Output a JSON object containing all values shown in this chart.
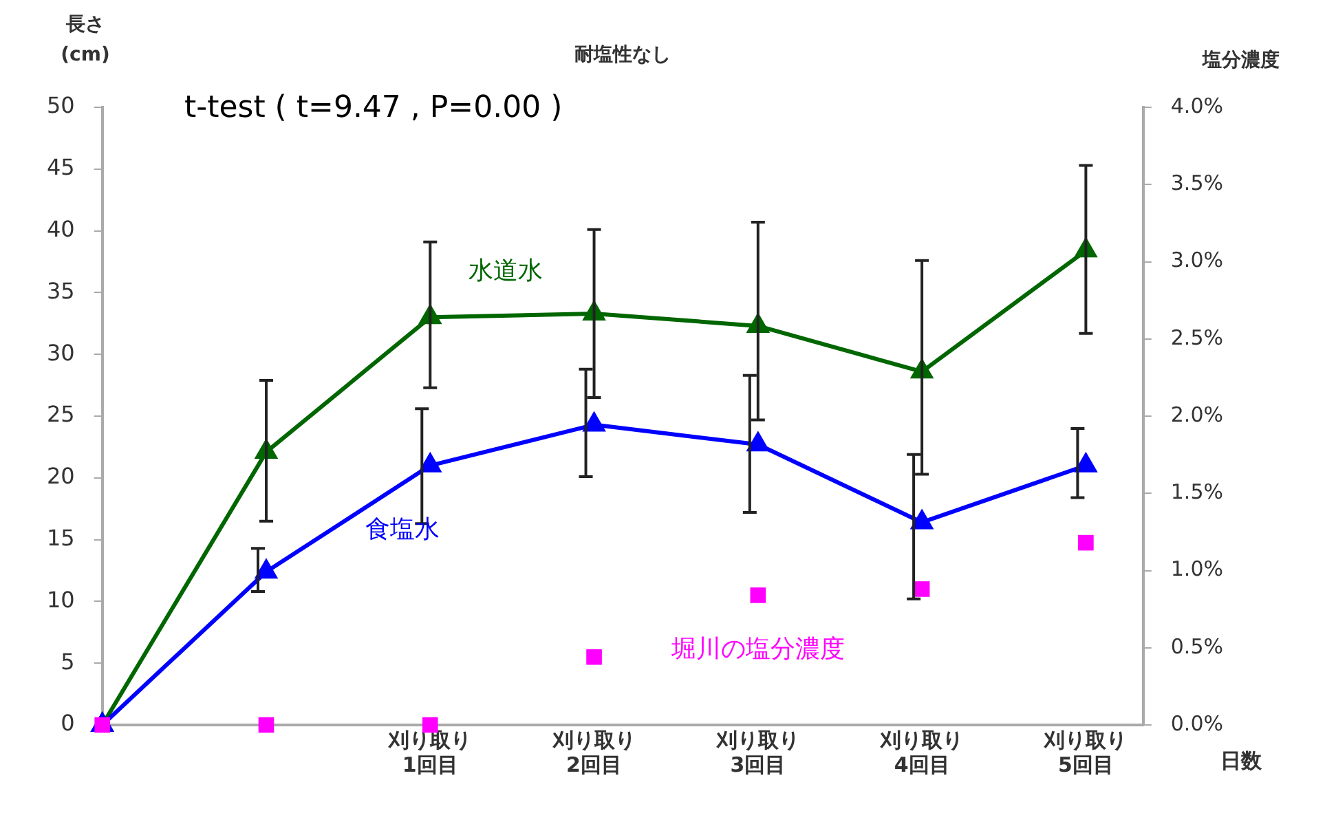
{
  "chart_data": {
    "type": "line",
    "title": "耐塩性なし",
    "ylabel": "長さ\n(cm)",
    "y2label": "塩分濃度",
    "xlabel": "日数",
    "annotations": [
      "t-test ( t=9.47 , P=0.00 )"
    ],
    "categories": [
      null,
      null,
      "刈り取り\n1回目",
      "刈り取り\n2回目",
      "刈り取り\n3回目",
      "刈り取り\n4回目",
      "刈り取り\n5回目"
    ],
    "ylim": [
      0,
      50
    ],
    "yticks": [
      0,
      5,
      10,
      15,
      20,
      25,
      30,
      35,
      40,
      45,
      50
    ],
    "y2lim": [
      0,
      4
    ],
    "y2ticks": [
      {
        "value": 0,
        "label": "0.0%"
      },
      {
        "value": 0.5,
        "label": "0.5%"
      },
      {
        "value": 1,
        "label": "1.0%"
      },
      {
        "value": 1.5,
        "label": "1.5%"
      },
      {
        "value": 2,
        "label": "2.0%"
      },
      {
        "value": 2.5,
        "label": "2.5%"
      },
      {
        "value": 3,
        "label": "3.0%"
      },
      {
        "value": 3.5,
        "label": "3.5%"
      },
      {
        "value": 4,
        "label": "4.0%"
      }
    ],
    "grid": false,
    "legend": false,
    "series": [
      {
        "name": "水道水",
        "color": "#006600",
        "marker": "triangle",
        "values": [
          0,
          22.1,
          33.0,
          33.3,
          32.3,
          28.6,
          38.4
        ],
        "errors": [
          null,
          [
            16.5,
            27.9
          ],
          [
            27.3,
            39.1
          ],
          [
            26.5,
            40.1
          ],
          [
            24.7,
            40.7
          ],
          [
            20.3,
            37.6
          ],
          [
            31.7,
            45.3
          ]
        ]
      },
      {
        "name": "食塩水",
        "color": "#0000ff",
        "marker": "triangle",
        "values": [
          0,
          12.4,
          21.0,
          24.3,
          22.7,
          16.4,
          21.0
        ],
        "errors": [
          null,
          [
            10.8,
            14.3
          ],
          [
            16.3,
            25.6
          ],
          [
            20.1,
            28.8
          ],
          [
            17.2,
            28.3
          ],
          [
            10.2,
            21.9
          ],
          [
            18.4,
            24.0
          ]
        ]
      },
      {
        "name": "堀川の塩分濃度",
        "type": "scatter",
        "axis": "y2",
        "color": "#ff00ff",
        "marker": "square",
        "values": [
          0,
          0,
          0,
          0.44,
          0.84,
          0.88,
          1.18
        ]
      }
    ]
  }
}
